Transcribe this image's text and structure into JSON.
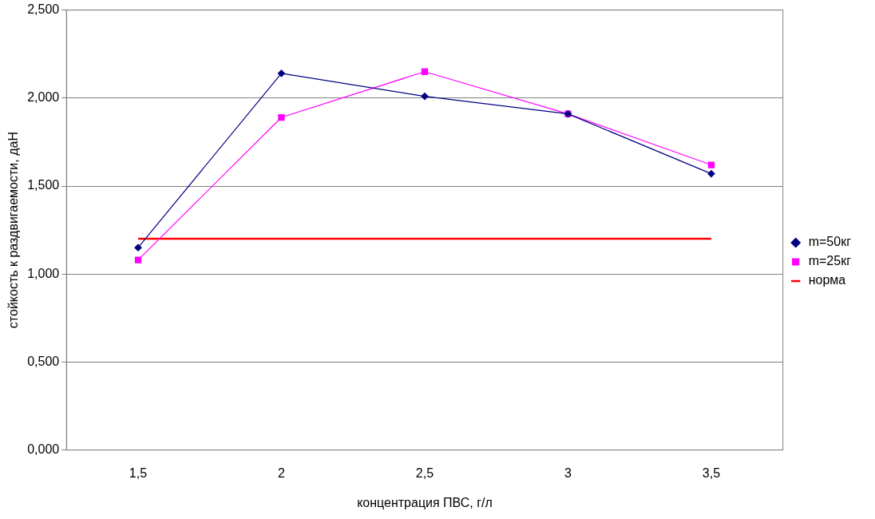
{
  "chart_data": {
    "type": "line",
    "xlabel": "концентрация ПВС, г/л",
    "ylabel": "стойкость к раздвигаемости, даН",
    "categories": [
      "1,5",
      "2",
      "2,5",
      "3",
      "3,5"
    ],
    "series": [
      {
        "name": "m=50кг",
        "color": "#000080",
        "values": [
          1.15,
          2.14,
          2.01,
          1.91,
          1.57
        ],
        "marker": "diamond"
      },
      {
        "name": "m=25кг",
        "color": "#ff00ff",
        "values": [
          1.08,
          1.89,
          2.15,
          1.91,
          1.62
        ],
        "marker": "square"
      },
      {
        "name": "норма",
        "color": "#ff0000",
        "values": [
          1.2,
          1.2,
          1.2,
          1.2,
          1.2
        ],
        "marker": "none"
      }
    ],
    "ylim": [
      0,
      2.5
    ],
    "yticks": [
      {
        "value": 0,
        "label": "0,000"
      },
      {
        "value": 0.5,
        "label": "0,500"
      },
      {
        "value": 1,
        "label": "1,000"
      },
      {
        "value": 1.5,
        "label": "1,500"
      },
      {
        "value": 2,
        "label": "2,000"
      },
      {
        "value": 2.5,
        "label": "2,500"
      }
    ],
    "grid": "y",
    "legend": "right",
    "line_style": "solid"
  }
}
